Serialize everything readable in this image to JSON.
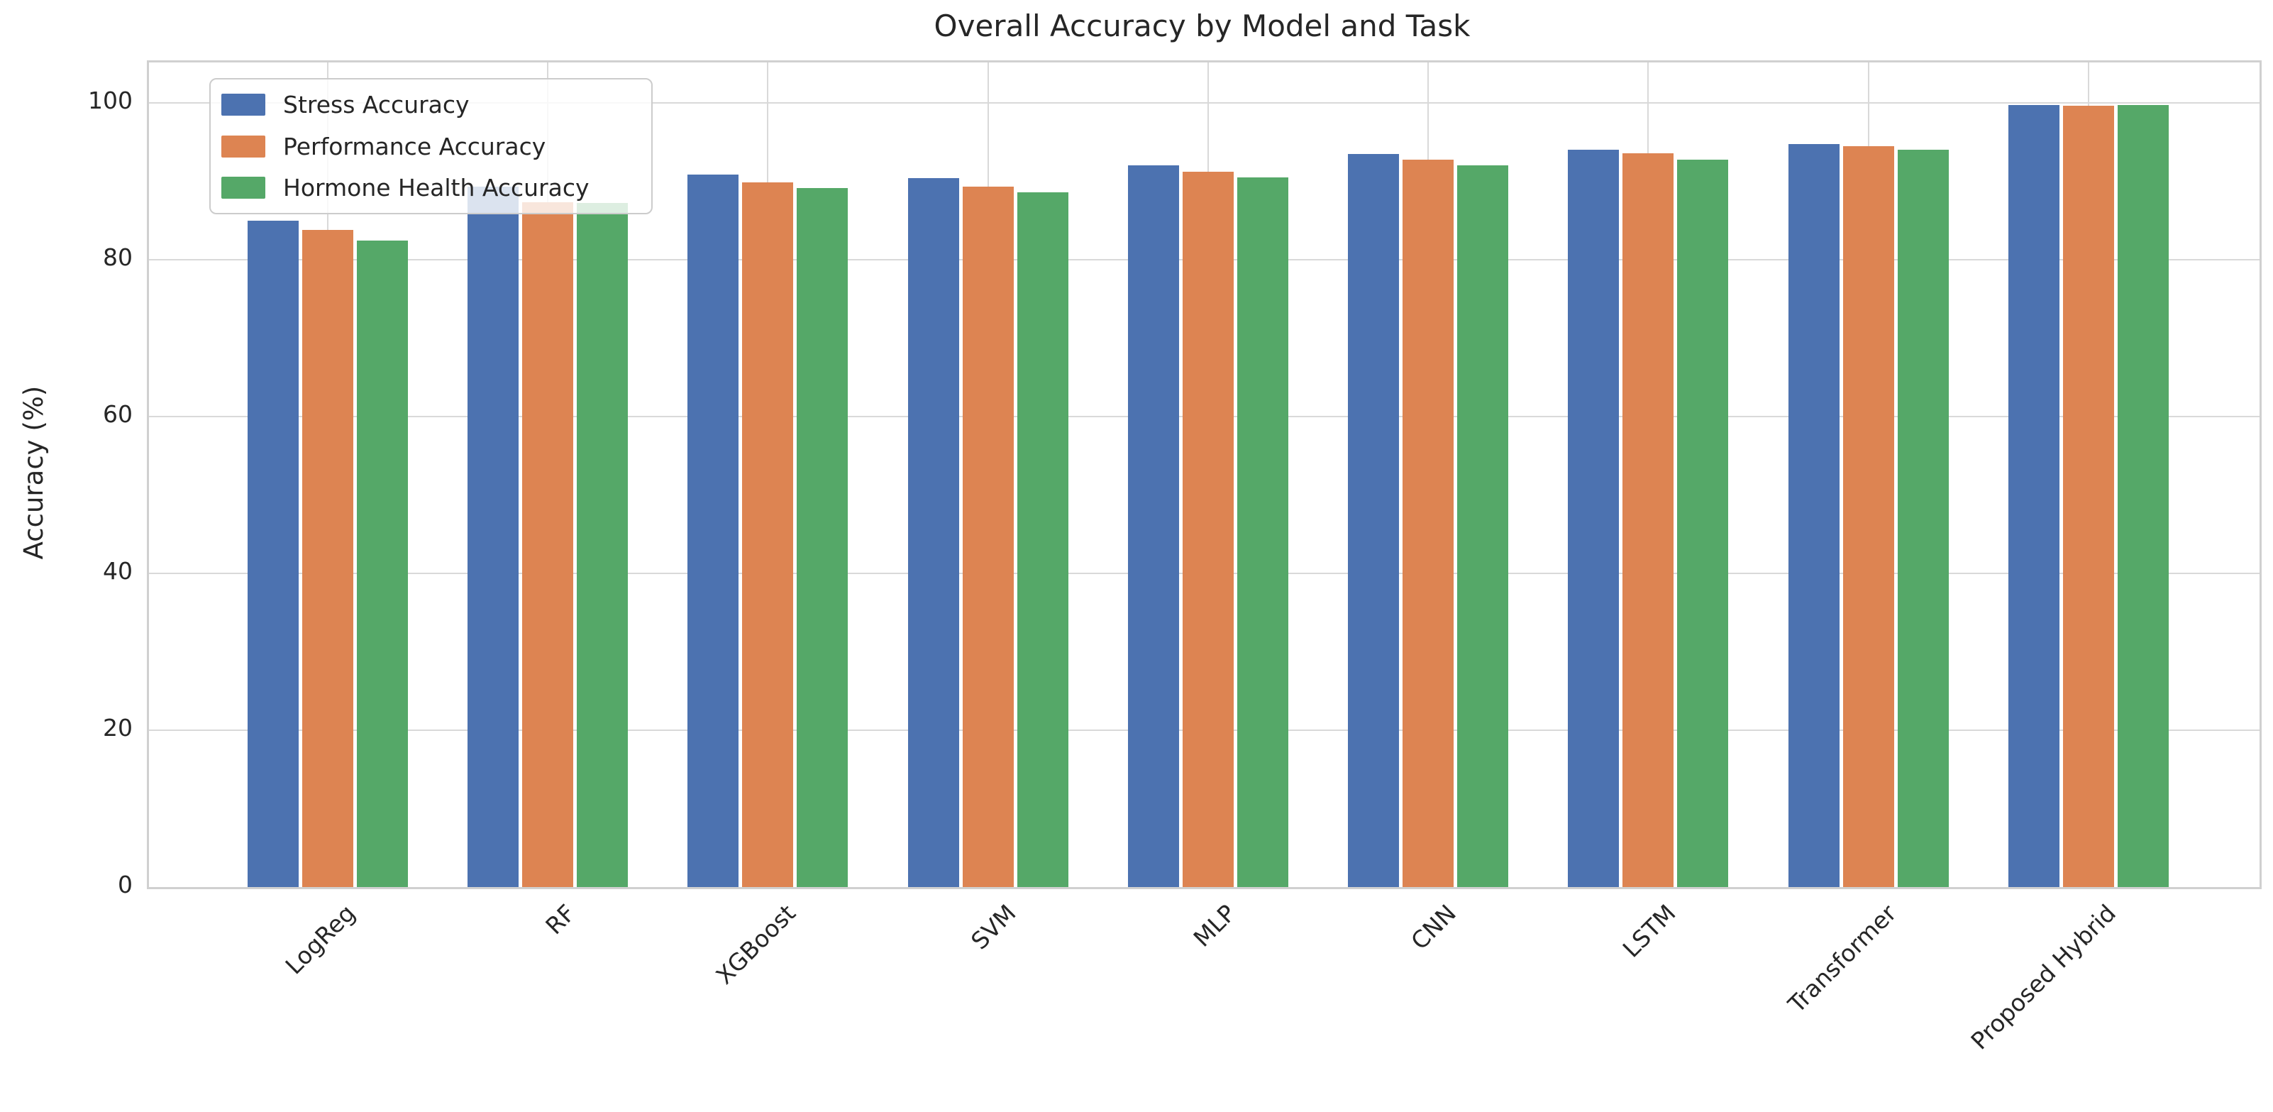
{
  "chart_data": {
    "type": "bar",
    "title": "Overall Accuracy by Model and Task",
    "ylabel": "Accuracy (%)",
    "xlabel": "",
    "categories": [
      "LogReg",
      "RF",
      "XGBoost",
      "SVM",
      "MLP",
      "CNN",
      "LSTM",
      "Transformer",
      "Proposed Hybrid"
    ],
    "series": [
      {
        "name": "Stress Accuracy",
        "color": "#4c72b0",
        "values": [
          85.0,
          89.4,
          90.9,
          90.4,
          92.1,
          93.5,
          94.1,
          94.8,
          99.8
        ]
      },
      {
        "name": "Performance Accuracy",
        "color": "#dd8452",
        "values": [
          83.8,
          87.4,
          89.9,
          89.4,
          91.3,
          92.8,
          93.6,
          94.5,
          99.7
        ]
      },
      {
        "name": "Hormone Health Accuracy",
        "color": "#55a868",
        "values": [
          82.5,
          87.3,
          89.2,
          88.6,
          90.5,
          92.1,
          92.8,
          94.1,
          99.8
        ]
      }
    ],
    "y_ticks": [
      0,
      20,
      40,
      60,
      80,
      100
    ],
    "ylim": [
      0,
      105.2
    ],
    "grid": true,
    "grid_color": "#d9d9d9",
    "text_color": "#262626",
    "legend_position": "upper left"
  }
}
